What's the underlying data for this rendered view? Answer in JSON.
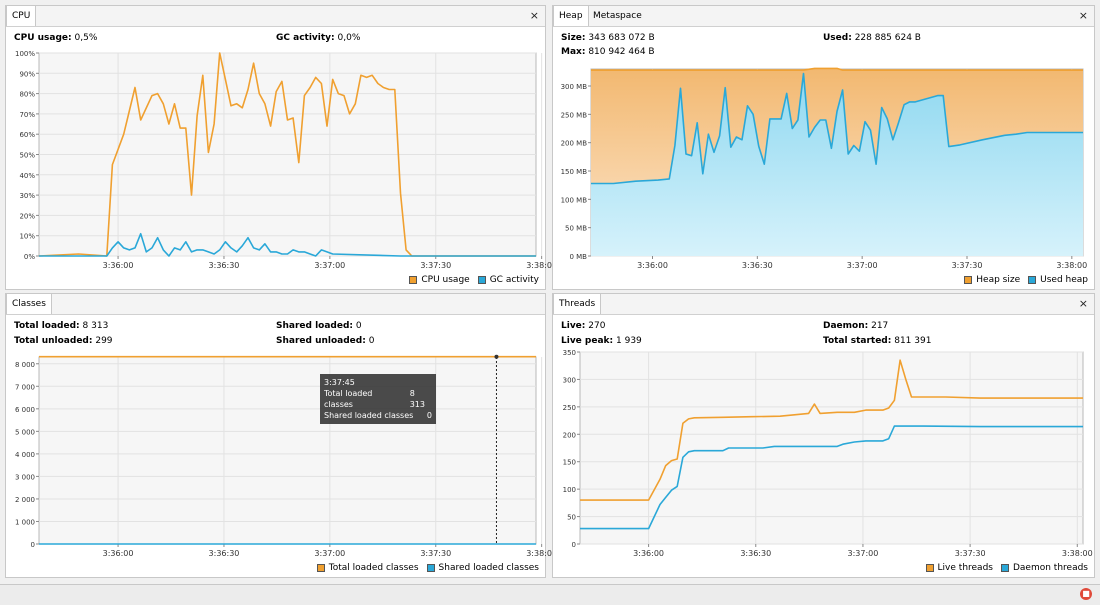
{
  "panels": {
    "cpu": {
      "tabs": [
        "CPU"
      ],
      "stats": [
        {
          "label": "CPU usage:",
          "value": "0,5%"
        },
        {
          "label": "GC activity:",
          "value": "0,0%"
        }
      ],
      "legend": [
        "CPU usage",
        "GC activity"
      ]
    },
    "heap": {
      "tabs": [
        "Heap",
        "Metaspace"
      ],
      "stats": [
        {
          "label": "Size:",
          "value": "343 683 072 B"
        },
        {
          "label": "Max:",
          "value": "810 942 464 B"
        },
        {
          "label": "Used:",
          "value": "228 885 624 B"
        }
      ],
      "legend": [
        "Heap size",
        "Used heap"
      ]
    },
    "classes": {
      "tabs": [
        "Classes"
      ],
      "stats": [
        {
          "label": "Total loaded:",
          "value": "8 313"
        },
        {
          "label": "Total unloaded:",
          "value": "299"
        },
        {
          "label": "Shared loaded:",
          "value": "0"
        },
        {
          "label": "Shared unloaded:",
          "value": "0"
        }
      ],
      "legend": [
        "Total loaded classes",
        "Shared loaded classes"
      ],
      "tooltip": {
        "time": "3:37:45",
        "rows": [
          {
            "label": "Total loaded classes",
            "value": "8 313"
          },
          {
            "label": "Shared loaded classes",
            "value": "0"
          }
        ]
      }
    },
    "threads": {
      "tabs": [
        "Threads"
      ],
      "stats": [
        {
          "label": "Live:",
          "value": "270"
        },
        {
          "label": "Live peak:",
          "value": "1 939"
        },
        {
          "label": "Daemon:",
          "value": "217"
        },
        {
          "label": "Total started:",
          "value": "811 391"
        }
      ],
      "legend": [
        "Live threads",
        "Daemon threads"
      ]
    }
  },
  "close_glyph": "×",
  "chart_data": [
    {
      "type": "line",
      "id": "cpu",
      "x_ticks": [
        "3:36:00",
        "3:36:30",
        "3:37:00",
        "3:37:30",
        "3:38:00"
      ],
      "y_ticks": [
        "0%",
        "10%",
        "20%",
        "30%",
        "40%",
        "50%",
        "60%",
        "70%",
        "80%",
        "90%",
        "100%"
      ],
      "ylim": [
        0,
        100
      ],
      "grid": true,
      "legend_position": "bottom-right",
      "series": [
        {
          "name": "CPU usage",
          "color": "#f0a030",
          "fill": false,
          "points": [
            [
              0,
              0
            ],
            [
              7,
              1
            ],
            [
              12,
              0
            ],
            [
              13,
              45
            ],
            [
              15,
              60
            ],
            [
              17,
              83
            ],
            [
              18,
              67
            ],
            [
              20,
              79
            ],
            [
              21,
              80
            ],
            [
              22,
              75
            ],
            [
              23,
              65
            ],
            [
              24,
              75
            ],
            [
              25,
              63
            ],
            [
              26,
              63
            ],
            [
              27,
              30
            ],
            [
              28,
              69
            ],
            [
              29,
              89
            ],
            [
              30,
              51
            ],
            [
              31,
              65
            ],
            [
              32,
              100
            ],
            [
              33,
              87
            ],
            [
              34,
              74
            ],
            [
              35,
              75
            ],
            [
              36,
              73
            ],
            [
              37,
              82
            ],
            [
              38,
              95
            ],
            [
              39,
              80
            ],
            [
              40,
              75
            ],
            [
              41,
              64
            ],
            [
              42,
              81
            ],
            [
              43,
              86
            ],
            [
              44,
              67
            ],
            [
              45,
              68
            ],
            [
              46,
              46
            ],
            [
              47,
              79
            ],
            [
              48,
              83
            ],
            [
              49,
              88
            ],
            [
              50,
              85
            ],
            [
              51,
              64
            ],
            [
              52,
              87
            ],
            [
              53,
              80
            ],
            [
              54,
              79
            ],
            [
              55,
              70
            ],
            [
              56,
              75
            ],
            [
              57,
              89
            ],
            [
              58,
              88
            ],
            [
              59,
              89
            ],
            [
              60,
              85
            ],
            [
              61,
              83
            ],
            [
              62,
              82
            ],
            [
              63,
              82
            ],
            [
              64,
              31
            ],
            [
              65,
              3
            ],
            [
              66,
              0
            ],
            [
              70,
              0
            ],
            [
              88,
              0
            ]
          ]
        },
        {
          "name": "GC activity",
          "color": "#2aa8d8",
          "fill": false,
          "points": [
            [
              0,
              0
            ],
            [
              12,
              0
            ],
            [
              13,
              4
            ],
            [
              14,
              7
            ],
            [
              15,
              4
            ],
            [
              16,
              3
            ],
            [
              17,
              4
            ],
            [
              18,
              11
            ],
            [
              19,
              2
            ],
            [
              20,
              4
            ],
            [
              21,
              9
            ],
            [
              22,
              3
            ],
            [
              23,
              0
            ],
            [
              24,
              4
            ],
            [
              25,
              3
            ],
            [
              26,
              7
            ],
            [
              27,
              2
            ],
            [
              28,
              3
            ],
            [
              29,
              3
            ],
            [
              30,
              2
            ],
            [
              31,
              1
            ],
            [
              32,
              3
            ],
            [
              33,
              7
            ],
            [
              34,
              4
            ],
            [
              35,
              2
            ],
            [
              36,
              5
            ],
            [
              37,
              9
            ],
            [
              38,
              4
            ],
            [
              39,
              3
            ],
            [
              40,
              6
            ],
            [
              41,
              2
            ],
            [
              42,
              2
            ],
            [
              43,
              1
            ],
            [
              44,
              1
            ],
            [
              45,
              3
            ],
            [
              46,
              2
            ],
            [
              47,
              2
            ],
            [
              48,
              1
            ],
            [
              49,
              0
            ],
            [
              50,
              3
            ],
            [
              51,
              2
            ],
            [
              52,
              1
            ],
            [
              64,
              0
            ],
            [
              88,
              0
            ]
          ]
        }
      ]
    },
    {
      "type": "area",
      "id": "heap",
      "x_ticks": [
        "3:36:00",
        "3:36:30",
        "3:37:00",
        "3:37:30",
        "3:38:00"
      ],
      "y_ticks": [
        "0 MB",
        "50 MB",
        "100 MB",
        "150 MB",
        "200 MB",
        "250 MB",
        "300 MB"
      ],
      "ylim": [
        0,
        330
      ],
      "grid": true,
      "legend_position": "bottom-right",
      "series": [
        {
          "name": "Heap size",
          "color": "#f0a030",
          "fill": true,
          "points": [
            [
              0,
              328
            ],
            [
              38,
              328
            ],
            [
              40,
              331
            ],
            [
              44,
              331
            ],
            [
              45,
              328
            ],
            [
              88,
              328
            ]
          ]
        },
        {
          "name": "Used heap",
          "color": "#2aa8d8",
          "fill": true,
          "points": [
            [
              0,
              128
            ],
            [
              4,
              128
            ],
            [
              8,
              132
            ],
            [
              12,
              134
            ],
            [
              14,
              136
            ],
            [
              15,
              195
            ],
            [
              16,
              296
            ],
            [
              17,
              180
            ],
            [
              18,
              177
            ],
            [
              19,
              235
            ],
            [
              20,
              145
            ],
            [
              21,
              215
            ],
            [
              22,
              183
            ],
            [
              23,
              212
            ],
            [
              24,
              297
            ],
            [
              25,
              192
            ],
            [
              26,
              210
            ],
            [
              27,
              205
            ],
            [
              28,
              265
            ],
            [
              29,
              250
            ],
            [
              30,
              194
            ],
            [
              31,
              162
            ],
            [
              32,
              242
            ],
            [
              33,
              242
            ],
            [
              34,
              242
            ],
            [
              35,
              287
            ],
            [
              36,
              225
            ],
            [
              37,
              240
            ],
            [
              38,
              322
            ],
            [
              39,
              210
            ],
            [
              40,
              227
            ],
            [
              41,
              240
            ],
            [
              42,
              240
            ],
            [
              43,
              190
            ],
            [
              44,
              255
            ],
            [
              45,
              293
            ],
            [
              46,
              180
            ],
            [
              47,
              195
            ],
            [
              48,
              185
            ],
            [
              49,
              237
            ],
            [
              50,
              222
            ],
            [
              51,
              162
            ],
            [
              52,
              262
            ],
            [
              53,
              242
            ],
            [
              54,
              205
            ],
            [
              55,
              235
            ],
            [
              56,
              267
            ],
            [
              57,
              272
            ],
            [
              58,
              272
            ],
            [
              62,
              283
            ],
            [
              63,
              283
            ],
            [
              64,
              193
            ],
            [
              66,
              196
            ],
            [
              70,
              205
            ],
            [
              74,
              213
            ],
            [
              76,
              215
            ],
            [
              78,
              218
            ],
            [
              88,
              218
            ]
          ]
        }
      ]
    },
    {
      "type": "line",
      "id": "classes",
      "x_ticks": [
        "3:36:00",
        "3:36:30",
        "3:37:00",
        "3:37:30",
        "3:38:00"
      ],
      "y_ticks": [
        "0",
        "1 000",
        "2 000",
        "3 000",
        "4 000",
        "5 000",
        "6 000",
        "7 000",
        "8 000"
      ],
      "ylim": [
        0,
        8300
      ],
      "grid": true,
      "legend_position": "bottom-right",
      "series": [
        {
          "name": "Total loaded classes",
          "color": "#f0a030",
          "fill": false,
          "points": [
            [
              0,
              8313
            ],
            [
              88,
              8313
            ]
          ]
        },
        {
          "name": "Shared loaded classes",
          "color": "#2aa8d8",
          "fill": false,
          "points": [
            [
              0,
              0
            ],
            [
              88,
              0
            ]
          ]
        }
      ]
    },
    {
      "type": "line",
      "id": "threads",
      "x_ticks": [
        "3:36:00",
        "3:36:30",
        "3:37:00",
        "3:37:30",
        "3:38:00"
      ],
      "y_ticks": [
        "0",
        "50",
        "100",
        "150",
        "200",
        "250",
        "300",
        "350"
      ],
      "ylim": [
        0,
        350
      ],
      "grid": true,
      "legend_position": "bottom-right",
      "series": [
        {
          "name": "Live threads",
          "color": "#f0a030",
          "fill": false,
          "points": [
            [
              0,
              80
            ],
            [
              12,
              80
            ],
            [
              14,
              118
            ],
            [
              15,
              143
            ],
            [
              16,
              152
            ],
            [
              17,
              155
            ],
            [
              18,
              220
            ],
            [
              19,
              228
            ],
            [
              20,
              230
            ],
            [
              25,
              231
            ],
            [
              30,
              232
            ],
            [
              35,
              233
            ],
            [
              40,
              238
            ],
            [
              41,
              255
            ],
            [
              42,
              238
            ],
            [
              45,
              240
            ],
            [
              48,
              240
            ],
            [
              50,
              244
            ],
            [
              53,
              244
            ],
            [
              54,
              248
            ],
            [
              55,
              262
            ],
            [
              56,
              335
            ],
            [
              57,
              300
            ],
            [
              58,
              268
            ],
            [
              64,
              268
            ],
            [
              70,
              266
            ],
            [
              88,
              266
            ]
          ]
        },
        {
          "name": "Daemon threads",
          "color": "#2aa8d8",
          "fill": false,
          "points": [
            [
              0,
              28
            ],
            [
              12,
              28
            ],
            [
              14,
              72
            ],
            [
              15,
              85
            ],
            [
              16,
              98
            ],
            [
              17,
              105
            ],
            [
              18,
              158
            ],
            [
              19,
              168
            ],
            [
              20,
              170
            ],
            [
              25,
              170
            ],
            [
              26,
              175
            ],
            [
              32,
              175
            ],
            [
              34,
              178
            ],
            [
              45,
              178
            ],
            [
              46,
              182
            ],
            [
              48,
              186
            ],
            [
              50,
              188
            ],
            [
              53,
              188
            ],
            [
              54,
              192
            ],
            [
              55,
              215
            ],
            [
              60,
              215
            ],
            [
              70,
              214
            ],
            [
              88,
              214
            ]
          ]
        }
      ]
    }
  ]
}
